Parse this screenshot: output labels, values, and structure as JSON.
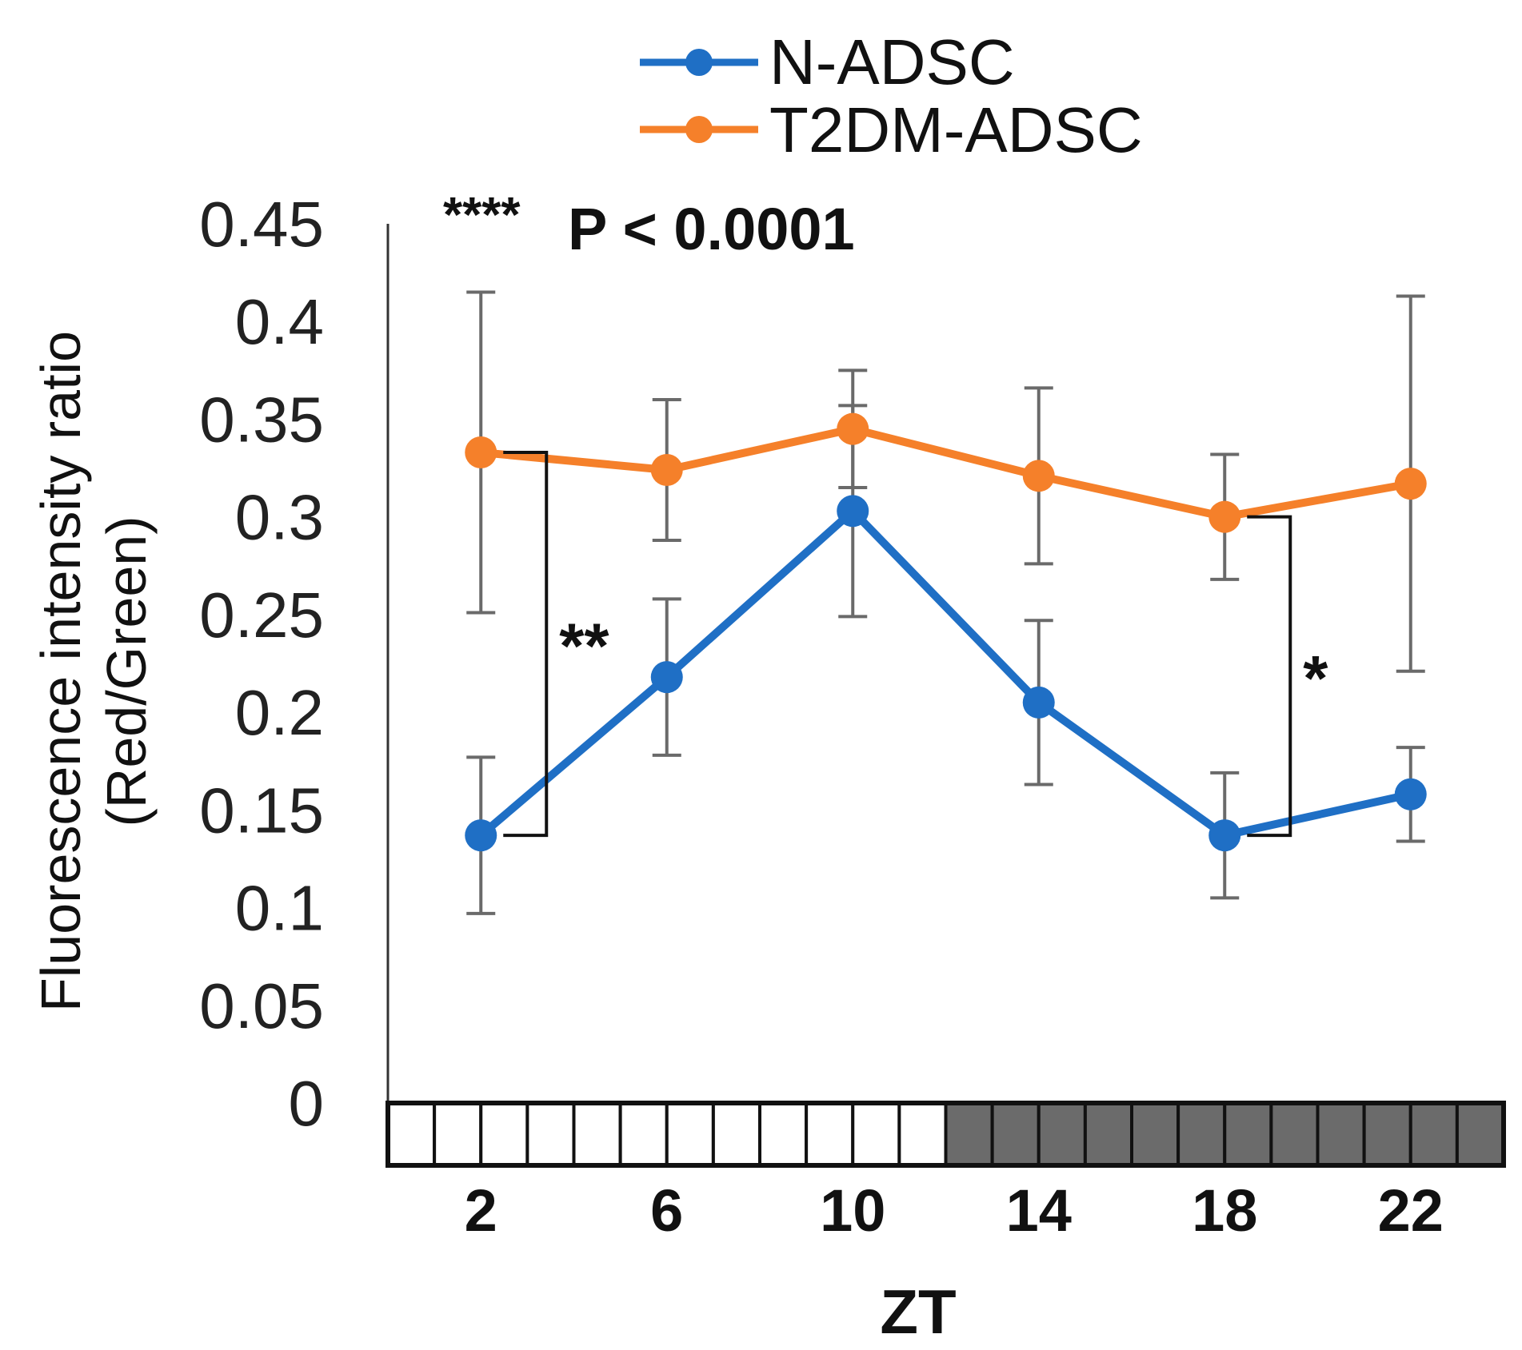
{
  "chart_data": {
    "type": "line",
    "title": "",
    "xlabel": "ZT",
    "ylabel_line1": "Fluorescence intensity ratio",
    "ylabel_line2": "(Red/Green)",
    "x": [
      2,
      6,
      10,
      14,
      18,
      22
    ],
    "x_tick_labels": [
      "2",
      "6",
      "10",
      "14",
      "18",
      "22"
    ],
    "ylim": [
      0,
      0.45
    ],
    "y_ticks": [
      0,
      0.05,
      0.1,
      0.15,
      0.2,
      0.25,
      0.3,
      0.35,
      0.4,
      0.45
    ],
    "y_tick_labels": [
      "0",
      "0.05",
      "0.1",
      "0.15",
      "0.2",
      "0.25",
      "0.3",
      "0.35",
      "0.4",
      "0.45"
    ],
    "series": [
      {
        "name": "N-ADSC",
        "color": "#1f6fc5",
        "values": [
          0.137,
          0.218,
          0.303,
          0.205,
          0.137,
          0.158
        ],
        "error": [
          0.04,
          0.04,
          0.054,
          0.042,
          0.032,
          0.024
        ]
      },
      {
        "name": "T2DM-ADSC",
        "color": "#f5802a",
        "values": [
          0.333,
          0.324,
          0.345,
          0.321,
          0.3,
          0.317
        ],
        "error": [
          0.082,
          0.036,
          0.03,
          0.045,
          0.032,
          0.096
        ]
      }
    ],
    "legend_position": "top-center",
    "grid": false,
    "annotations": {
      "overall_stars": "****",
      "overall_text": "P < 0.0001",
      "significance_brackets": [
        {
          "x": 2,
          "label": "**"
        },
        {
          "x": 18,
          "label": "*"
        }
      ]
    },
    "light_dark_bar": {
      "light_hours": [
        0,
        12
      ],
      "dark_hours": [
        12,
        24
      ],
      "segments": 24,
      "light_color": "#ffffff",
      "dark_color": "#6b6b6b"
    }
  }
}
